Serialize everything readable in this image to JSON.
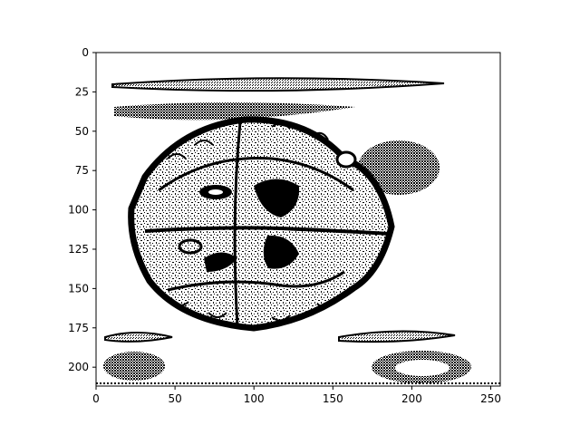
{
  "chart_data": {
    "type": "heatmap",
    "title": "",
    "xlabel": "",
    "ylabel": "",
    "image_shape": [
      212,
      256
    ],
    "colormap": "binary (black and white, dithered)",
    "xlim": [
      0,
      256
    ],
    "ylim": [
      212,
      0
    ],
    "x_ticks": [
      0,
      50,
      100,
      150,
      200,
      250
    ],
    "y_ticks": [
      0,
      25,
      50,
      75,
      100,
      125,
      150,
      175,
      200
    ],
    "x_tick_labels": [
      "0",
      "50",
      "100",
      "150",
      "200",
      "250"
    ],
    "y_tick_labels": [
      "0",
      "25",
      "50",
      "75",
      "100",
      "125",
      "150",
      "175",
      "200"
    ],
    "image_content": "dithered black-and-white image of a circular brain-like cross-section with gray blobs around it",
    "colors": {
      "ink": "#000000",
      "background": "#ffffff"
    },
    "grid": false
  }
}
